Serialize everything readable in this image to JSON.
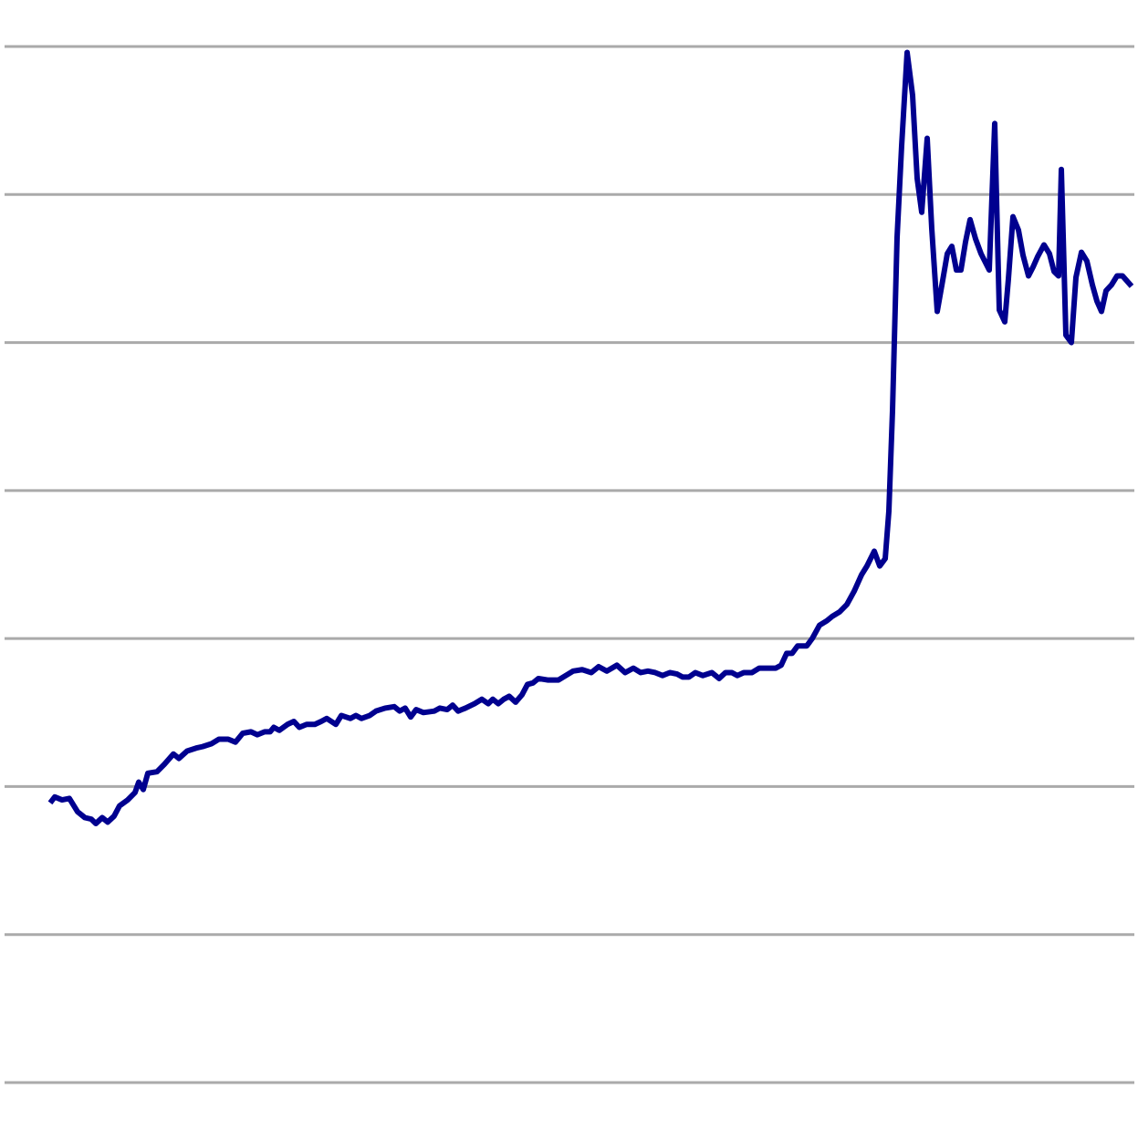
{
  "chart_data": {
    "type": "line",
    "x": [
      0,
      1,
      2.6,
      4.2,
      6,
      7.6,
      9,
      10,
      11.4,
      12.6,
      14,
      15.2,
      17,
      18.6,
      19.4,
      20.4,
      21.4,
      23.4,
      25,
      27,
      28.2,
      30,
      32,
      33.4,
      35.4,
      37,
      39,
      40.6,
      42.2,
      44,
      45.4,
      47,
      48.2,
      49,
      50.2,
      52,
      53.4,
      54.6,
      56.2,
      58,
      59.4,
      60.6,
      62.6,
      63.8,
      65.8,
      67,
      68.2,
      70,
      71.4,
      73.4,
      75.4,
      76.6,
      77.8,
      79,
      80.2,
      81.8,
      84.2,
      85.4,
      87,
      88.2,
      89.4,
      91,
      93,
      94.6,
      96,
      97,
      98.2,
      99.4,
      100.6,
      102,
      103.4,
      104.6,
      105.8,
      107,
      109,
      110.2,
      111.4,
      113,
      114.6,
      116.6,
      118.6,
      120.2,
      122,
      124.2,
      126,
      127.8,
      129.4,
      131,
      132.6,
      134.2,
      135.8,
      137.4,
      138.6,
      140,
      141.4,
      143,
      145,
      146.6,
      148,
      149.4,
      150.6,
      152,
      153.8,
      155.4,
      157.4,
      159,
      160.2,
      161.4,
      162.6,
      163.8,
      165.8,
      167,
      168.6,
      170.2,
      171.4,
      173,
      174.6,
      176.2,
      177.8,
      179,
      180.6,
      181.8,
      183,
      183.8,
      184.6,
      185.6,
      186.6,
      187.8,
      189,
      190,
      191,
      192.2,
      193.2,
      194.4,
      195.6,
      196.6,
      197.6,
      198.6,
      199.6,
      200.6,
      201.6,
      202.8,
      204,
      205.8,
      207,
      208,
      209.2,
      210,
      211,
      212.2,
      213.2,
      214.4,
      215.4,
      216.4,
      217.8,
      219,
      220,
      221,
      221.6,
      222.6,
      223.8,
      224.8,
      226,
      227.2,
      228.4,
      229.4,
      230.4,
      231.4,
      232.6,
      233.8,
      235,
      237
    ],
    "series": [
      {
        "color": "#00008f",
        "values": [
          1.89,
          1.93,
          1.91,
          1.92,
          1.83,
          1.79,
          1.78,
          1.75,
          1.79,
          1.76,
          1.8,
          1.87,
          1.91,
          1.96,
          2.03,
          1.98,
          2.09,
          2.1,
          2.15,
          2.22,
          2.19,
          2.24,
          2.26,
          2.27,
          2.29,
          2.32,
          2.32,
          2.3,
          2.36,
          2.37,
          2.35,
          2.37,
          2.37,
          2.4,
          2.38,
          2.42,
          2.44,
          2.4,
          2.42,
          2.42,
          2.44,
          2.46,
          2.42,
          2.48,
          2.46,
          2.48,
          2.46,
          2.48,
          2.51,
          2.53,
          2.54,
          2.51,
          2.53,
          2.47,
          2.52,
          2.5,
          2.51,
          2.53,
          2.52,
          2.55,
          2.51,
          2.53,
          2.56,
          2.59,
          2.56,
          2.59,
          2.56,
          2.59,
          2.61,
          2.57,
          2.62,
          2.69,
          2.7,
          2.73,
          2.72,
          2.72,
          2.72,
          2.75,
          2.78,
          2.79,
          2.77,
          2.81,
          2.78,
          2.82,
          2.77,
          2.8,
          2.77,
          2.78,
          2.77,
          2.75,
          2.77,
          2.76,
          2.74,
          2.74,
          2.77,
          2.75,
          2.77,
          2.73,
          2.77,
          2.77,
          2.75,
          2.77,
          2.77,
          2.8,
          2.8,
          2.8,
          2.82,
          2.9,
          2.9,
          2.95,
          2.95,
          3.0,
          3.09,
          3.12,
          3.15,
          3.18,
          3.23,
          3.32,
          3.43,
          3.49,
          3.59,
          3.49,
          3.54,
          3.86,
          4.54,
          5.71,
          6.33,
          6.96,
          6.67,
          6.11,
          5.88,
          6.38,
          5.77,
          5.21,
          5.42,
          5.6,
          5.65,
          5.49,
          5.49,
          5.68,
          5.83,
          5.7,
          5.6,
          5.49,
          6.48,
          5.22,
          5.14,
          5.43,
          5.85,
          5.76,
          5.59,
          5.45,
          5.51,
          5.58,
          5.66,
          5.6,
          5.48,
          5.45,
          6.17,
          5.05,
          5.0,
          5.44,
          5.61,
          5.55,
          5.39,
          5.28,
          5.21,
          5.35,
          5.39,
          5.45,
          5.45,
          5.38
        ]
      }
    ],
    "xlim": [
      -10,
      237.6
    ],
    "ylim": [
      0,
      7
    ],
    "yticks": [
      0,
      1,
      2,
      3,
      4,
      5,
      6,
      7
    ],
    "grid": true
  }
}
